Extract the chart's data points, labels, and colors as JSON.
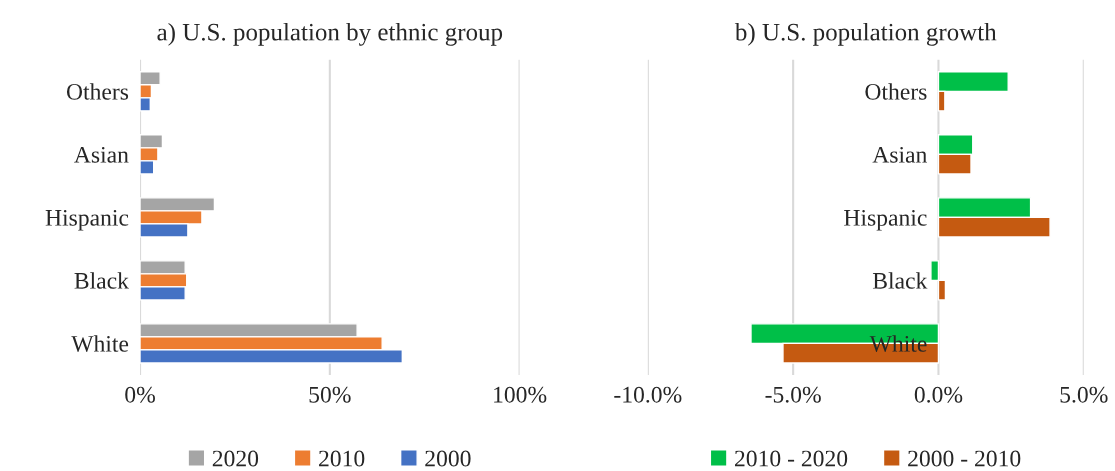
{
  "chart_data": [
    {
      "type": "bar",
      "orientation": "horizontal",
      "title": "a) U.S. population by ethnic group",
      "categories": [
        "Others",
        "Asian",
        "Hispanic",
        "Black",
        "White"
      ],
      "series": [
        {
          "name": "2020",
          "color": "#a5a5a5",
          "values": [
            5.3,
            5.9,
            19.6,
            11.9,
            57.2
          ]
        },
        {
          "name": "2010",
          "color": "#ed7d31",
          "values": [
            3.0,
            4.7,
            16.3,
            12.3,
            63.8
          ]
        },
        {
          "name": "2000",
          "color": "#4472c4",
          "values": [
            2.7,
            3.6,
            12.6,
            11.9,
            69.1
          ]
        }
      ],
      "xlim": [
        0,
        100
      ],
      "xticks": [
        {
          "value": 0,
          "label": "0%"
        },
        {
          "value": 50,
          "label": "50%"
        },
        {
          "value": 100,
          "label": "100%"
        }
      ],
      "grid": "x",
      "legend": "bottom"
    },
    {
      "type": "bar",
      "orientation": "horizontal",
      "title": "b) U.S. population growth",
      "categories": [
        "Others",
        "Asian",
        "Hispanic",
        "Black",
        "White"
      ],
      "series": [
        {
          "name": "2010 - 2020",
          "color": "#00bf48",
          "values": [
            2.4,
            1.18,
            3.17,
            -0.26,
            -6.45
          ]
        },
        {
          "name": "2000 - 2010",
          "color": "#c55a11",
          "values": [
            0.22,
            1.12,
            3.84,
            0.24,
            -5.35
          ]
        }
      ],
      "xlim": [
        -10,
        5
      ],
      "xticks": [
        {
          "value": -10,
          "label": "-10.0%"
        },
        {
          "value": -5,
          "label": "-5.0%"
        },
        {
          "value": 0,
          "label": "0.0%"
        },
        {
          "value": 5,
          "label": "5.0%"
        }
      ],
      "grid": "x",
      "legend": "bottom"
    }
  ]
}
